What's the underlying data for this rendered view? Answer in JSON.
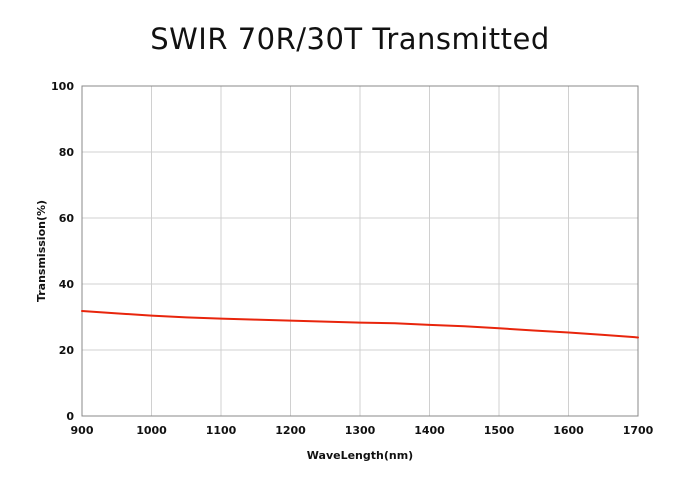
{
  "chart_data": {
    "type": "line",
    "title": "SWIR 70R/30T Transmitted",
    "xlabel": "WaveLength(nm)",
    "ylabel": "Transmission(%)",
    "xlim": [
      900,
      1700
    ],
    "ylim": [
      0,
      100
    ],
    "xticks": [
      900,
      1000,
      1100,
      1200,
      1300,
      1400,
      1500,
      1600,
      1700
    ],
    "yticks": [
      0,
      20,
      40,
      60,
      80,
      100
    ],
    "grid": true,
    "legend": "none",
    "series": [
      {
        "color": "#e8250c",
        "x": [
          900,
          950,
          1000,
          1050,
          1100,
          1150,
          1200,
          1250,
          1300,
          1350,
          1400,
          1450,
          1500,
          1550,
          1600,
          1650,
          1700
        ],
        "y": [
          31.8,
          31.1,
          30.4,
          29.9,
          29.5,
          29.2,
          28.9,
          28.6,
          28.3,
          28.1,
          27.6,
          27.2,
          26.6,
          25.9,
          25.3,
          24.6,
          23.8
        ]
      }
    ]
  }
}
